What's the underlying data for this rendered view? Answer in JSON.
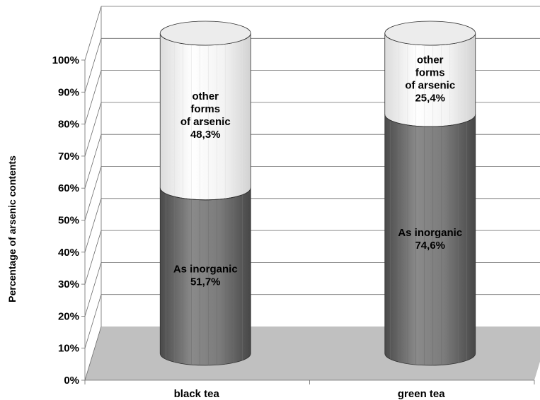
{
  "chart_data": {
    "type": "bar",
    "stacked": true,
    "three_d": true,
    "percent_stacked": true,
    "ylabel": "Percentage of arsenic contents",
    "xlabel": "",
    "title": "",
    "categories": [
      "black tea",
      "green tea"
    ],
    "ylim": [
      0,
      100
    ],
    "yticks": [
      "0%",
      "10%",
      "20%",
      "30%",
      "40%",
      "50%",
      "60%",
      "70%",
      "80%",
      "90%",
      "100%"
    ],
    "grid": true,
    "series": [
      {
        "name": "As inorganic",
        "values": [
          51.7,
          74.6
        ],
        "labels": [
          [
            "As inorganic",
            "51,7%"
          ],
          [
            "As inorganic",
            "74,6%"
          ]
        ],
        "color": "#7c7c7c"
      },
      {
        "name": "other forms of arsenic",
        "values": [
          48.3,
          25.4
        ],
        "labels": [
          [
            "other",
            "forms",
            "of arsenic",
            "48,3%"
          ],
          [
            "other",
            "forms",
            "of arsenic",
            "25,4%"
          ]
        ],
        "color": "#f4f4f4"
      }
    ],
    "floor_color": "#c0c0c0"
  }
}
